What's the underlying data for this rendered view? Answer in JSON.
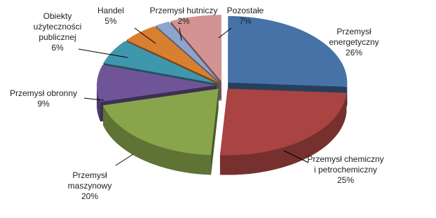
{
  "chart_data": {
    "type": "pie",
    "categories": [
      "Przemysł energetyczny",
      "Przemysł chemiczny i petrochemiczny",
      "Przemysł maszynowy",
      "Przemysł obronny",
      "Obiekty użyteczności publicznej",
      "Handel",
      "Przemysł hutniczy",
      "Pozostałe"
    ],
    "values": [
      26,
      25,
      20,
      9,
      6,
      5,
      2,
      7
    ],
    "value_labels": [
      "26%",
      "25%",
      "20%",
      "9%",
      "6%",
      "5%",
      "2%",
      "7%"
    ],
    "colors": [
      "#4672a8",
      "#a94442",
      "#88a54b",
      "#6f5597",
      "#3f97ad",
      "#d97f30",
      "#8ca5cf",
      "#d39393"
    ]
  }
}
